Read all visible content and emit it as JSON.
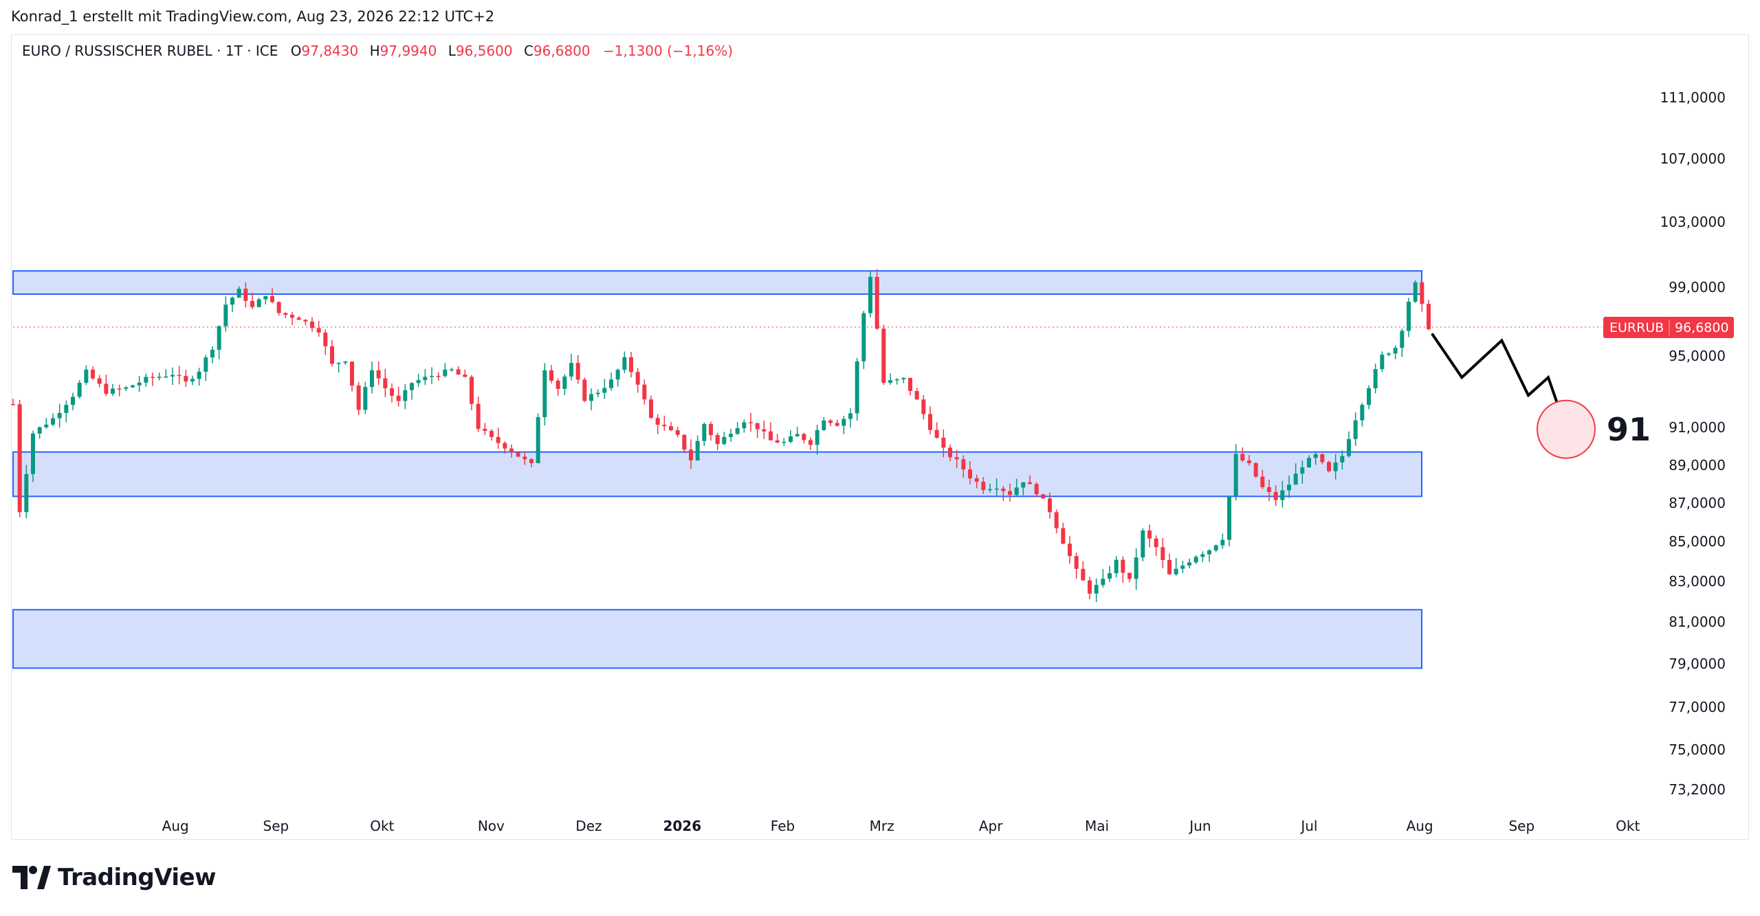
{
  "header": {
    "attribution": "Konrad_1 erstellt mit TradingView.com, Aug 23, 2026 22:12 UTC+2"
  },
  "legend": {
    "symbol": "EURO / RUSSISCHER RUBEL · 1T · ICE",
    "open_label": "O",
    "open": "97,8430",
    "high_label": "H",
    "high": "97,9940",
    "low_label": "L",
    "low": "96,5600",
    "close_label": "C",
    "close": "96,6800",
    "change": "−1,1300 (−1,16%)"
  },
  "brand": {
    "name": "TradingView"
  },
  "colors": {
    "up": "#089981",
    "down": "#f23645",
    "zone_fill": "#d4e0fb",
    "zone_stroke": "#2962ff",
    "badge": "#f23645",
    "projection": "#000000",
    "target_circle": "#f23645"
  },
  "chart_data": {
    "type": "candlestick",
    "price_label": {
      "symbol": "EURRUB",
      "value": "96,6800",
      "price": 96.68
    },
    "y_ticks": [
      {
        "v": 111,
        "label": "111,0000"
      },
      {
        "v": 107,
        "label": "107,0000"
      },
      {
        "v": 103,
        "label": "103,0000"
      },
      {
        "v": 99,
        "label": "99,0000"
      },
      {
        "v": 95,
        "label": "95,0000"
      },
      {
        "v": 91,
        "label": "91,0000"
      },
      {
        "v": 89,
        "label": "89,0000"
      },
      {
        "v": 87,
        "label": "87,0000"
      },
      {
        "v": 85,
        "label": "85,0000"
      },
      {
        "v": 83,
        "label": "83,0000"
      },
      {
        "v": 81,
        "label": "81,0000"
      },
      {
        "v": 79,
        "label": "79,0000"
      },
      {
        "v": 77,
        "label": "77,0000"
      },
      {
        "v": 75,
        "label": "75,0000"
      },
      {
        "v": 73.2,
        "label": "73,2000"
      }
    ],
    "x_ticks": [
      {
        "label": "Aug",
        "bold": false,
        "t": 0.054
      },
      {
        "label": "Sep",
        "bold": false,
        "t": 0.125
      },
      {
        "label": "Okt",
        "bold": false,
        "t": 0.2
      },
      {
        "label": "Nov",
        "bold": false,
        "t": 0.277
      },
      {
        "label": "Dez",
        "bold": false,
        "t": 0.346
      },
      {
        "label": "2026",
        "bold": true,
        "t": 0.412
      },
      {
        "label": "Feb",
        "bold": false,
        "t": 0.483
      },
      {
        "label": "Mrz",
        "bold": false,
        "t": 0.553
      },
      {
        "label": "Apr",
        "bold": false,
        "t": 0.63
      },
      {
        "label": "Mai",
        "bold": false,
        "t": 0.705
      },
      {
        "label": "Jun",
        "bold": false,
        "t": 0.778
      },
      {
        "label": "Jul",
        "bold": false,
        "t": 0.855
      },
      {
        "label": "Aug",
        "bold": false,
        "t": 0.933
      },
      {
        "label": "Sep",
        "bold": false,
        "t": 1.005
      },
      {
        "label": "Okt",
        "bold": false,
        "t": 1.08
      }
    ],
    "zones": [
      {
        "top": 100.0,
        "bottom": 98.6
      },
      {
        "top": 89.7,
        "bottom": 87.35
      },
      {
        "top": 81.6,
        "bottom": 78.8
      }
    ],
    "path": [
      [
        0,
        92.3
      ],
      [
        1,
        86.6
      ],
      [
        3,
        90.7
      ],
      [
        6,
        91.5
      ],
      [
        9,
        92.8
      ],
      [
        11,
        94.1
      ],
      [
        14,
        93.0
      ],
      [
        17,
        93.2
      ],
      [
        20,
        93.7
      ],
      [
        24,
        94.0
      ],
      [
        26,
        93.5
      ],
      [
        28,
        94.2
      ],
      [
        30,
        95.5
      ],
      [
        32,
        98.0
      ],
      [
        34,
        98.8
      ],
      [
        36,
        97.8
      ],
      [
        38,
        98.6
      ],
      [
        40,
        97.5
      ],
      [
        43,
        97.2
      ],
      [
        46,
        96.5
      ],
      [
        48,
        94.5
      ],
      [
        50,
        94.8
      ],
      [
        52,
        92.0
      ],
      [
        54,
        94.3
      ],
      [
        56,
        93.2
      ],
      [
        58,
        92.4
      ],
      [
        60,
        93.5
      ],
      [
        63,
        93.9
      ],
      [
        66,
        94.2
      ],
      [
        68,
        93.7
      ],
      [
        70,
        91.0
      ],
      [
        72,
        90.4
      ],
      [
        74,
        90.0
      ],
      [
        76,
        89.5
      ],
      [
        78,
        89.0
      ],
      [
        80,
        94.3
      ],
      [
        82,
        93.2
      ],
      [
        84,
        94.5
      ],
      [
        86,
        92.6
      ],
      [
        88,
        93.0
      ],
      [
        90,
        93.6
      ],
      [
        92,
        94.8
      ],
      [
        94,
        93.5
      ],
      [
        96,
        91.5
      ],
      [
        98,
        91.0
      ],
      [
        100,
        90.5
      ],
      [
        102,
        89.3
      ],
      [
        104,
        91.2
      ],
      [
        106,
        90.1
      ],
      [
        108,
        90.8
      ],
      [
        110,
        91.4
      ],
      [
        112,
        91.0
      ],
      [
        114,
        90.3
      ],
      [
        116,
        90.2
      ],
      [
        118,
        90.6
      ],
      [
        120,
        90.2
      ],
      [
        122,
        91.5
      ],
      [
        124,
        91.2
      ],
      [
        126,
        91.8
      ],
      [
        128,
        97.5
      ],
      [
        129,
        99.7
      ],
      [
        131,
        93.5
      ],
      [
        134,
        93.7
      ],
      [
        136,
        92.5
      ],
      [
        138,
        91.0
      ],
      [
        140,
        89.8
      ],
      [
        142,
        89.2
      ],
      [
        144,
        88.4
      ],
      [
        146,
        87.8
      ],
      [
        148,
        87.9
      ],
      [
        150,
        87.5
      ],
      [
        152,
        88.2
      ],
      [
        154,
        87.6
      ],
      [
        156,
        86.6
      ],
      [
        158,
        85.0
      ],
      [
        160,
        83.5
      ],
      [
        162,
        82.5
      ],
      [
        164,
        83.0
      ],
      [
        166,
        84.0
      ],
      [
        168,
        83.0
      ],
      [
        170,
        85.5
      ],
      [
        172,
        84.7
      ],
      [
        174,
        83.3
      ],
      [
        176,
        83.8
      ],
      [
        178,
        84.3
      ],
      [
        180,
        84.6
      ],
      [
        182,
        85.2
      ],
      [
        184,
        89.5
      ],
      [
        186,
        89.0
      ],
      [
        188,
        87.8
      ],
      [
        190,
        87.2
      ],
      [
        192,
        88.0
      ],
      [
        194,
        89.0
      ],
      [
        196,
        89.5
      ],
      [
        198,
        88.6
      ],
      [
        200,
        89.5
      ],
      [
        202,
        91.5
      ],
      [
        204,
        93.3
      ],
      [
        206,
        95.0
      ],
      [
        208,
        95.5
      ],
      [
        209,
        96.6
      ],
      [
        210,
        98.2
      ],
      [
        211,
        99.2
      ],
      [
        212,
        97.9
      ],
      [
        213,
        96.68
      ]
    ],
    "projection": [
      [
        213.5,
        96.3
      ],
      [
        218,
        93.8
      ],
      [
        224,
        95.9
      ],
      [
        228,
        92.8
      ],
      [
        231,
        93.8
      ],
      [
        234,
        90.6
      ]
    ],
    "target": {
      "label": "91",
      "value": 90.9
    }
  }
}
